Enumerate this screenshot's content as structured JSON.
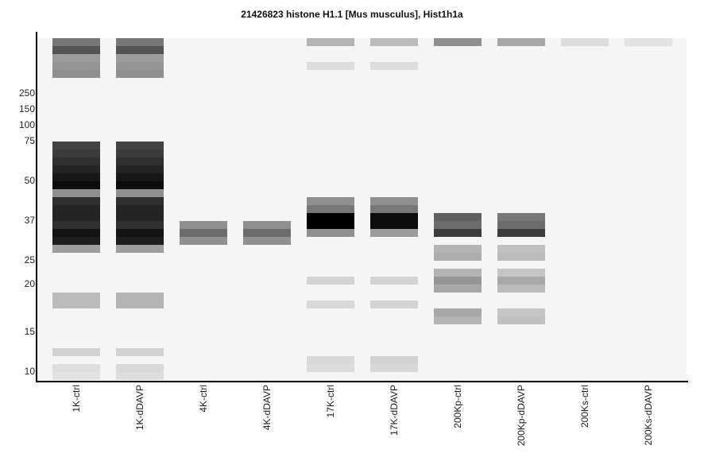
{
  "chart_data": {
    "type": "heatmap",
    "title": "21426823 histone H1.1 [Mus musculus], Hist1h1a",
    "lanes": [
      "1K-ctrl",
      "1K-dDAVP",
      "4K-ctrl",
      "4K-dDAVP",
      "17K-ctrl",
      "17K-dDAVP",
      "200Kp-ctrl",
      "200Kp-dDAVP",
      "200Ks-ctrl",
      "200Ks-dDAVP"
    ],
    "mw_ticks": [
      250,
      150,
      100,
      75,
      50,
      37,
      25,
      20,
      15,
      10
    ],
    "background_color": "#f4f5f4",
    "band_levels": [
      {
        "lane": 0,
        "bands": [
          [
            0,
            0.5
          ],
          [
            1,
            0.65
          ],
          [
            2,
            0.35
          ],
          [
            3,
            0.38
          ],
          [
            4,
            0.4
          ],
          [
            13,
            0.72
          ],
          [
            14,
            0.75
          ],
          [
            15,
            0.8
          ],
          [
            16,
            0.85
          ],
          [
            17,
            0.9
          ],
          [
            18,
            0.95
          ],
          [
            19,
            0.4
          ],
          [
            20,
            0.8
          ],
          [
            21,
            0.85
          ],
          [
            22,
            0.85
          ],
          [
            23,
            0.8
          ],
          [
            24,
            0.92
          ],
          [
            25,
            0.88
          ],
          [
            26,
            0.35
          ],
          [
            32,
            0.22
          ],
          [
            33,
            0.22
          ],
          [
            39,
            0.12
          ],
          [
            41,
            0.08
          ],
          [
            42,
            0.06
          ]
        ]
      },
      {
        "lane": 1,
        "bands": [
          [
            0,
            0.5
          ],
          [
            1,
            0.65
          ],
          [
            2,
            0.35
          ],
          [
            3,
            0.38
          ],
          [
            4,
            0.4
          ],
          [
            13,
            0.72
          ],
          [
            14,
            0.75
          ],
          [
            15,
            0.8
          ],
          [
            16,
            0.85
          ],
          [
            17,
            0.9
          ],
          [
            18,
            0.95
          ],
          [
            19,
            0.4
          ],
          [
            20,
            0.8
          ],
          [
            21,
            0.85
          ],
          [
            22,
            0.85
          ],
          [
            23,
            0.8
          ],
          [
            24,
            0.92
          ],
          [
            25,
            0.88
          ],
          [
            26,
            0.35
          ],
          [
            32,
            0.25
          ],
          [
            33,
            0.25
          ],
          [
            39,
            0.12
          ],
          [
            41,
            0.1
          ],
          [
            42,
            0.08
          ]
        ]
      },
      {
        "lane": 2,
        "bands": [
          [
            23,
            0.4
          ],
          [
            24,
            0.55
          ],
          [
            25,
            0.4
          ]
        ]
      },
      {
        "lane": 3,
        "bands": [
          [
            23,
            0.4
          ],
          [
            24,
            0.55
          ],
          [
            25,
            0.4
          ]
        ]
      },
      {
        "lane": 4,
        "bands": [
          [
            0,
            0.25
          ],
          [
            3,
            0.08
          ],
          [
            20,
            0.4
          ],
          [
            21,
            0.5
          ],
          [
            22,
            1.0
          ],
          [
            23,
            1.0
          ],
          [
            24,
            0.4
          ],
          [
            30,
            0.12
          ],
          [
            33,
            0.1
          ],
          [
            40,
            0.1
          ],
          [
            41,
            0.08
          ]
        ]
      },
      {
        "lane": 5,
        "bands": [
          [
            0,
            0.22
          ],
          [
            3,
            0.08
          ],
          [
            20,
            0.4
          ],
          [
            21,
            0.5
          ],
          [
            22,
            0.95
          ],
          [
            23,
            0.95
          ],
          [
            24,
            0.35
          ],
          [
            30,
            0.12
          ],
          [
            33,
            0.12
          ],
          [
            40,
            0.12
          ],
          [
            41,
            0.1
          ]
        ]
      },
      {
        "lane": 6,
        "bands": [
          [
            0,
            0.4
          ],
          [
            22,
            0.6
          ],
          [
            23,
            0.55
          ],
          [
            24,
            0.75
          ],
          [
            26,
            0.25
          ],
          [
            27,
            0.28
          ],
          [
            29,
            0.25
          ],
          [
            30,
            0.38
          ],
          [
            31,
            0.3
          ],
          [
            34,
            0.3
          ],
          [
            35,
            0.25
          ]
        ]
      },
      {
        "lane": 7,
        "bands": [
          [
            0,
            0.3
          ],
          [
            22,
            0.5
          ],
          [
            23,
            0.55
          ],
          [
            24,
            0.75
          ],
          [
            26,
            0.2
          ],
          [
            27,
            0.22
          ],
          [
            29,
            0.18
          ],
          [
            30,
            0.3
          ],
          [
            31,
            0.22
          ],
          [
            34,
            0.18
          ],
          [
            35,
            0.2
          ]
        ]
      },
      {
        "lane": 8,
        "bands": [
          [
            0,
            0.08
          ]
        ]
      },
      {
        "lane": 9,
        "bands": [
          [
            0,
            0.06
          ]
        ]
      }
    ]
  }
}
